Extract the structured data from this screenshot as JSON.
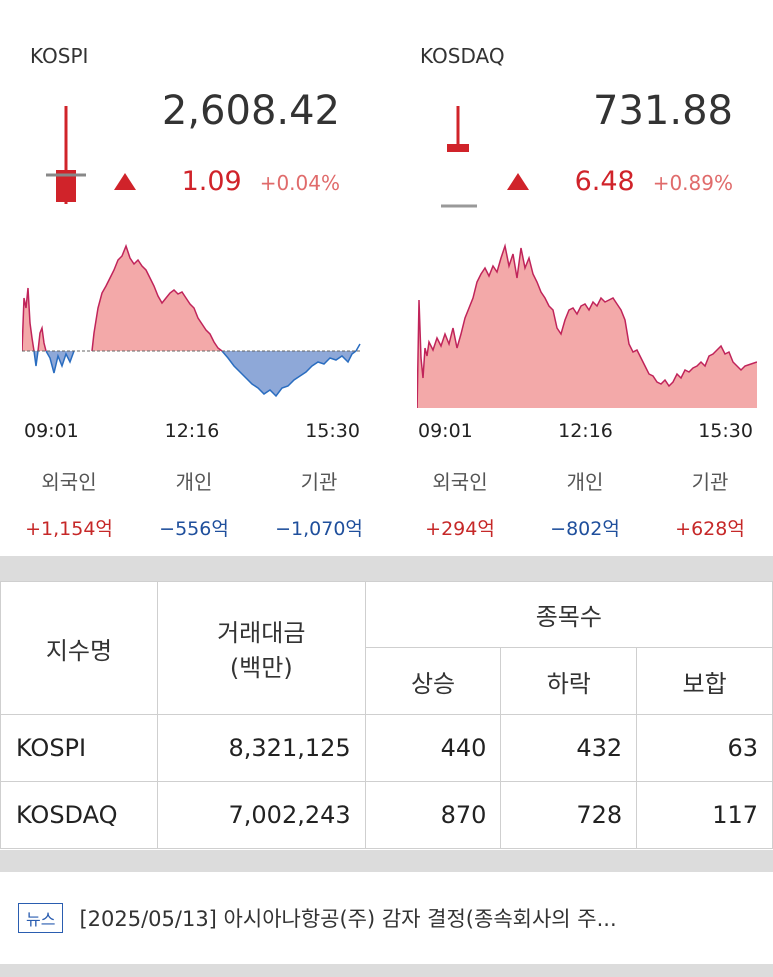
{
  "kospi": {
    "name": "KOSPI",
    "value": "2,608.42",
    "change_abs": "1.09",
    "change_pct": "+0.04%",
    "times": [
      "09:01",
      "12:16",
      "15:30"
    ],
    "investors": [
      {
        "label": "외국인",
        "value": "+1,154억",
        "dir": "up"
      },
      {
        "label": "개인",
        "value": "−556억",
        "dir": "down"
      },
      {
        "label": "기관",
        "value": "−1,070억",
        "dir": "down"
      }
    ]
  },
  "kosdaq": {
    "name": "KOSDAQ",
    "value": "731.88",
    "change_abs": "6.48",
    "change_pct": "+0.89%",
    "times": [
      "09:01",
      "12:16",
      "15:30"
    ],
    "investors": [
      {
        "label": "외국인",
        "value": "+294억",
        "dir": "up"
      },
      {
        "label": "개인",
        "value": "−802억",
        "dir": "down"
      },
      {
        "label": "기관",
        "value": "+628억",
        "dir": "up"
      }
    ]
  },
  "table": {
    "headers": {
      "name": "지수명",
      "amount": "거래대금",
      "amount_unit": "(백만)",
      "count": "종목수",
      "up": "상승",
      "down": "하락",
      "flat": "보합"
    },
    "rows": [
      {
        "name": "KOSPI",
        "amount": "8,321,125",
        "up": "440",
        "down": "432",
        "flat": "63"
      },
      {
        "name": "KOSDAQ",
        "amount": "7,002,243",
        "up": "870",
        "down": "728",
        "flat": "117"
      }
    ]
  },
  "news": {
    "tag": "뉴스",
    "headline": "[2025/05/13] 아시아나항공(주) 감자 결정(종속회사의 주..."
  },
  "colors": {
    "up": "#d0232a",
    "down": "#1f4f9c",
    "area_up": "#f3a9a9",
    "area_down": "#8ea8d8"
  }
}
